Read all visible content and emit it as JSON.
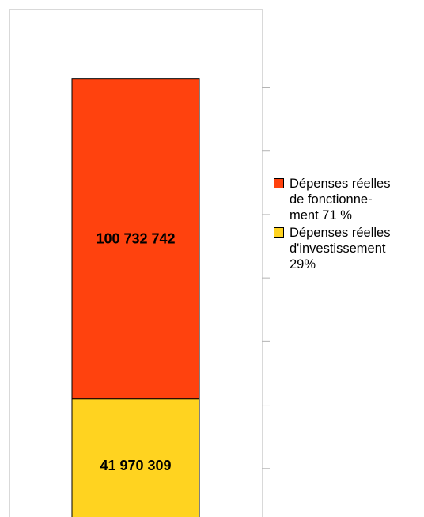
{
  "chart_data": {
    "type": "bar",
    "stacked": true,
    "categories": [
      ""
    ],
    "series": [
      {
        "name": "Dépenses réelles d'investissement 29%",
        "values": [
          41970309
        ],
        "label": "41 970 309",
        "color": "#ffd320"
      },
      {
        "name": "Dépenses réelles de fonctionnement 71 %",
        "values": [
          100732742
        ],
        "label": "100 732 742",
        "color": "#ff420e"
      }
    ],
    "ylim": [
      0,
      150000000
    ],
    "y_tick_step": 20000000,
    "legend_position": "right",
    "grid": false
  },
  "legend": [
    {
      "lines": [
        "Dépenses réelles",
        "de fonctionne-",
        "ment 71 %"
      ],
      "color": "#ff420e"
    },
    {
      "lines": [
        "Dépenses réelles",
        "d'investissement",
        "29%"
      ],
      "color": "#ffd320"
    }
  ]
}
